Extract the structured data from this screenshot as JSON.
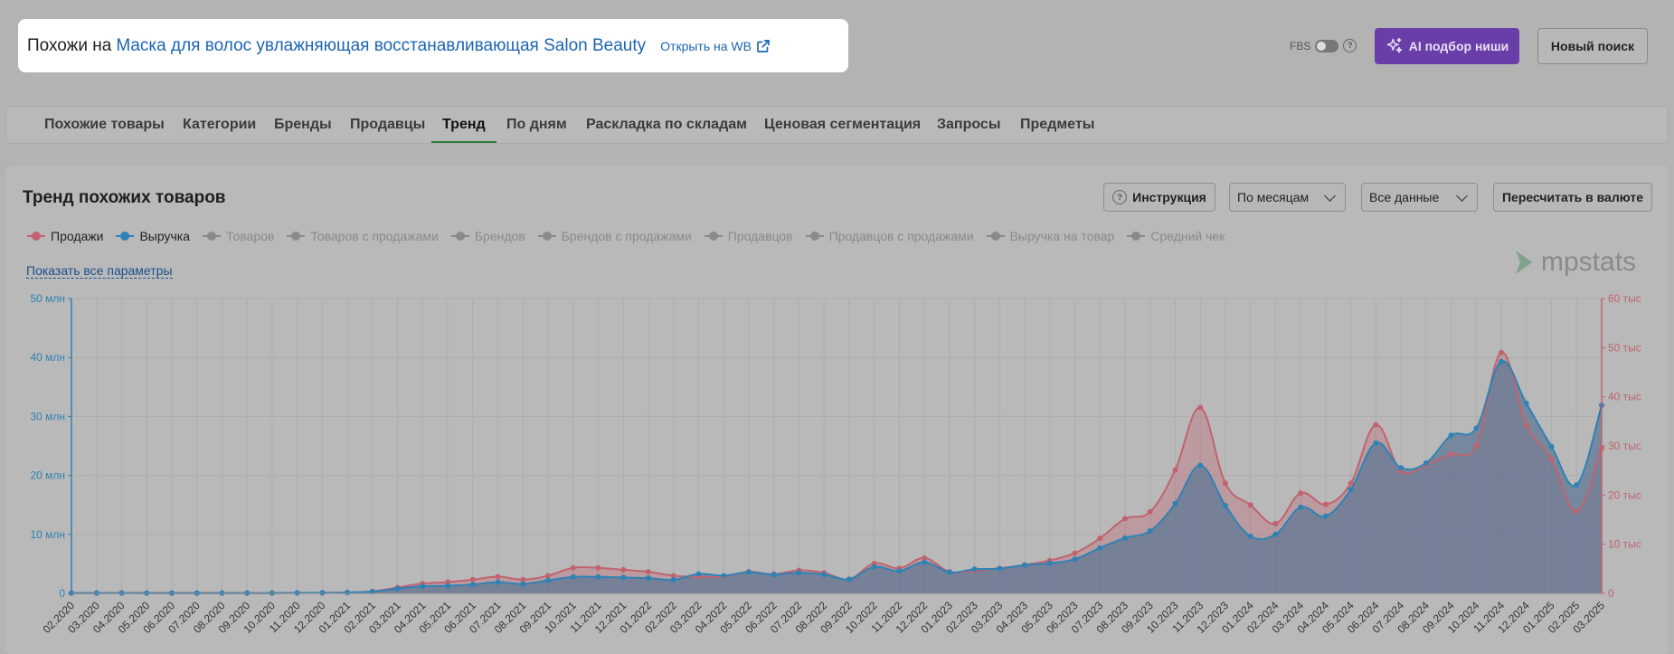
{
  "header": {
    "prefix": "Похожи на",
    "product_name": "Маска для волос увлажняющая восстанавливающая Salon Beauty",
    "open_wb": "Открыть на WB"
  },
  "topbar": {
    "fbs_label": "FBS",
    "help": "?",
    "ai_button": "AI подбор ниши",
    "new_search": "Новый поиск"
  },
  "tabs": [
    {
      "label": "Похожие товары"
    },
    {
      "label": "Категории"
    },
    {
      "label": "Бренды"
    },
    {
      "label": "Продавцы"
    },
    {
      "label": "Тренд"
    },
    {
      "label": "По дням"
    },
    {
      "label": "Раскладка по складам"
    },
    {
      "label": "Ценовая сегментация"
    },
    {
      "label": "Запросы"
    },
    {
      "label": "Предметы"
    }
  ],
  "active_tab": "Тренд",
  "panel": {
    "title": "Тренд похожих товаров",
    "instruction_button": "Инструкция",
    "period_select": "По месяцам",
    "data_select": "Все данные",
    "currency_button": "Пересчитать в валюте",
    "show_all_params": "Показать все параметры",
    "logo_text": "mpstats"
  },
  "legend": [
    {
      "label": "Продажи",
      "active": true,
      "color": "#c0636f"
    },
    {
      "label": "Выручка",
      "active": true,
      "color": "#2f82b5"
    },
    {
      "label": "Товаров",
      "active": false
    },
    {
      "label": "Товаров с продажами",
      "active": false
    },
    {
      "label": "Брендов",
      "active": false
    },
    {
      "label": "Брендов с продажами",
      "active": false
    },
    {
      "label": "Продавцов",
      "active": false
    },
    {
      "label": "Продавцов с продажами",
      "active": false
    },
    {
      "label": "Выручка на товар",
      "active": false
    },
    {
      "label": "Средний чек",
      "active": false
    }
  ],
  "chart_data": {
    "type": "area",
    "x": [
      "02.2020",
      "03.2020",
      "04.2020",
      "05.2020",
      "06.2020",
      "07.2020",
      "08.2020",
      "09.2020",
      "10.2020",
      "11.2020",
      "12.2020",
      "01.2021",
      "02.2021",
      "03.2021",
      "04.2021",
      "05.2021",
      "06.2021",
      "07.2021",
      "08.2021",
      "09.2021",
      "10.2021",
      "11.2021",
      "12.2021",
      "01.2022",
      "02.2022",
      "03.2022",
      "04.2022",
      "05.2022",
      "06.2022",
      "07.2022",
      "08.2022",
      "09.2022",
      "10.2022",
      "11.2022",
      "12.2022",
      "01.2023",
      "02.2023",
      "03.2023",
      "04.2023",
      "05.2023",
      "06.2023",
      "07.2023",
      "08.2023",
      "09.2023",
      "10.2023",
      "11.2023",
      "12.2023",
      "01.2024",
      "02.2024",
      "03.2024",
      "04.2024",
      "05.2024",
      "06.2024",
      "07.2024",
      "08.2024",
      "09.2024",
      "10.2024",
      "11.2024",
      "12.2024",
      "01.2025",
      "02.2025",
      "03.2025"
    ],
    "y_left": {
      "ticks": [
        "0",
        "10 млн",
        "20 млн",
        "30 млн",
        "40 млн",
        "50 млн"
      ],
      "max": 50,
      "color": "#2f82b5"
    },
    "y_right": {
      "ticks": [
        "0",
        "10 тыс",
        "20 тыс",
        "30 тыс",
        "40 тыс",
        "50 тыс",
        "60 тыс"
      ],
      "max": 60,
      "color": "#c0636f"
    },
    "series": [
      {
        "name": "Продажи",
        "axis": "right",
        "color": "#c0636f",
        "values": [
          0.05,
          0.05,
          0.1,
          0.05,
          0.05,
          0.05,
          0.05,
          0.05,
          0.05,
          0.1,
          0.1,
          0.2,
          0.4,
          1.2,
          2.0,
          2.3,
          2.8,
          3.4,
          2.8,
          3.6,
          5.2,
          5.2,
          4.8,
          4.4,
          3.6,
          3.4,
          3.4,
          4.4,
          3.9,
          4.7,
          4.2,
          2.9,
          6.1,
          5.1,
          7.2,
          4.4,
          4.6,
          5.1,
          5.8,
          6.7,
          8.2,
          11.2,
          15.2,
          16.6,
          25.1,
          37.8,
          22.4,
          18.0,
          14.2,
          20.4,
          18.1,
          22.4,
          34.3,
          24.9,
          26.2,
          28.3,
          30.1,
          49.0,
          34.2,
          27.3,
          16.7,
          29.5
        ]
      },
      {
        "name": "Выручка",
        "axis": "left",
        "color": "#2f82b5",
        "values": [
          0.05,
          0.05,
          0.05,
          0.05,
          0.05,
          0.05,
          0.05,
          0.05,
          0.05,
          0.1,
          0.1,
          0.15,
          0.3,
          0.8,
          1.2,
          1.3,
          1.5,
          1.9,
          1.6,
          2.2,
          2.8,
          2.8,
          2.7,
          2.6,
          2.3,
          3.3,
          3.0,
          3.6,
          3.2,
          3.5,
          3.2,
          2.4,
          4.5,
          3.8,
          5.3,
          3.6,
          4.1,
          4.2,
          4.8,
          5.1,
          5.8,
          7.7,
          9.4,
          10.6,
          15.2,
          21.7,
          14.9,
          9.7,
          10.0,
          14.6,
          13.1,
          17.6,
          25.5,
          21.3,
          22.1,
          26.8,
          28.0,
          39.3,
          32.2,
          24.9,
          18.4,
          31.9
        ]
      }
    ]
  }
}
